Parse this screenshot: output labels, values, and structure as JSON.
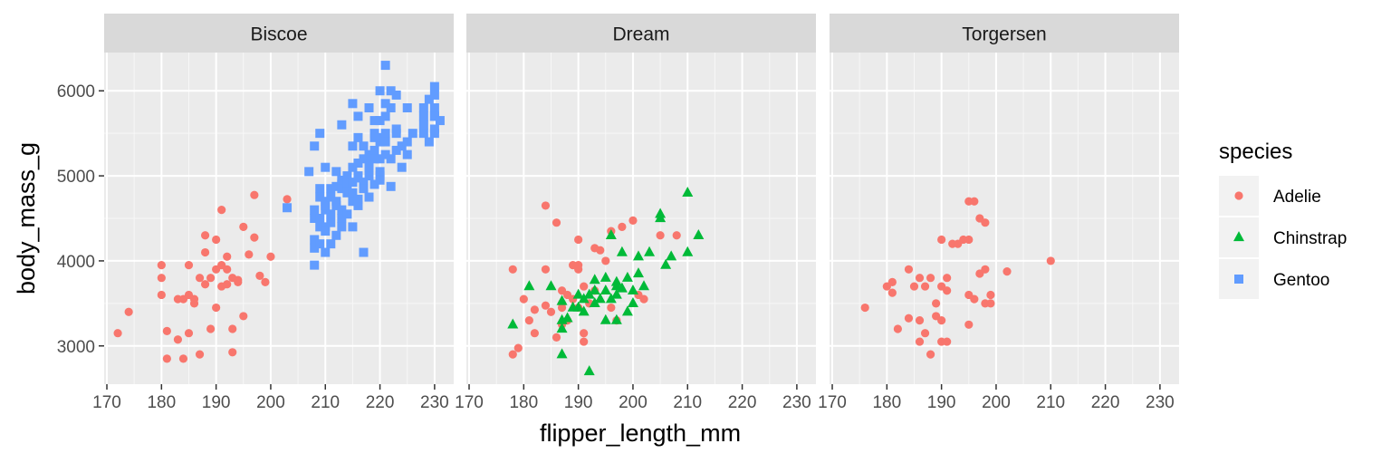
{
  "chart_data": {
    "type": "scatter",
    "facet_by": "island",
    "facets": [
      "Biscoe",
      "Dream",
      "Torgersen"
    ],
    "xlabel": "flipper_length_mm",
    "ylabel": "body_mass_g",
    "xlim": [
      169.5,
      233.5
    ],
    "ylim": [
      2550,
      6450
    ],
    "xticks": [
      170,
      180,
      190,
      200,
      210,
      220,
      230
    ],
    "yticks": [
      3000,
      4000,
      5000,
      6000
    ],
    "grid": true,
    "legend": {
      "title": "species",
      "position": "right"
    },
    "series": [
      {
        "name": "Adelie",
        "color": "#F8766D",
        "shape": "circle"
      },
      {
        "name": "Chinstrap",
        "color": "#00BA38",
        "shape": "triangle"
      },
      {
        "name": "Gentoo",
        "color": "#619CFF",
        "shape": "square"
      }
    ],
    "points": {
      "Biscoe": {
        "Adelie": [
          [
            172,
            3150
          ],
          [
            174,
            3400
          ],
          [
            180,
            3950
          ],
          [
            180,
            3800
          ],
          [
            180,
            3600
          ],
          [
            181,
            3175
          ],
          [
            181,
            2850
          ],
          [
            183,
            3075
          ],
          [
            183,
            3550
          ],
          [
            184,
            3550
          ],
          [
            184,
            2850
          ],
          [
            185,
            3950
          ],
          [
            185,
            3150
          ],
          [
            185,
            3600
          ],
          [
            186,
            3550
          ],
          [
            186,
            3500
          ],
          [
            187,
            3800
          ],
          [
            187,
            2900
          ],
          [
            188,
            3725
          ],
          [
            188,
            4100
          ],
          [
            188,
            4300
          ],
          [
            189,
            3800
          ],
          [
            189,
            3200
          ],
          [
            190,
            3450
          ],
          [
            190,
            3900
          ],
          [
            190,
            4250
          ],
          [
            191,
            3700
          ],
          [
            191,
            4600
          ],
          [
            191,
            3950
          ],
          [
            192,
            3725
          ],
          [
            192,
            4050
          ],
          [
            192,
            3900
          ],
          [
            193,
            3800
          ],
          [
            193,
            3200
          ],
          [
            193,
            2925
          ],
          [
            194,
            3750
          ],
          [
            194,
            3775
          ],
          [
            195,
            4400
          ],
          [
            195,
            3350
          ],
          [
            196,
            4075
          ],
          [
            197,
            4775
          ],
          [
            197,
            4275
          ],
          [
            198,
            3825
          ],
          [
            199,
            3750
          ],
          [
            200,
            4050
          ],
          [
            203,
            4725
          ]
        ],
        "Gentoo": [
          [
            203,
            4625
          ],
          [
            207,
            5050
          ],
          [
            208,
            5350
          ],
          [
            208,
            3950
          ],
          [
            208,
            4600
          ],
          [
            208,
            4500
          ],
          [
            208,
            4250
          ],
          [
            208,
            4150
          ],
          [
            209,
            4400
          ],
          [
            209,
            4200
          ],
          [
            209,
            4850
          ],
          [
            209,
            4500
          ],
          [
            209,
            4750
          ],
          [
            209,
            5500
          ],
          [
            210,
            4100
          ],
          [
            210,
            4700
          ],
          [
            210,
            4600
          ],
          [
            210,
            4400
          ],
          [
            210,
            5100
          ],
          [
            210,
            4350
          ],
          [
            210,
            4650
          ],
          [
            211,
            4200
          ],
          [
            211,
            4450
          ],
          [
            211,
            4850
          ],
          [
            211,
            4550
          ],
          [
            211,
            4750
          ],
          [
            212,
            4300
          ],
          [
            212,
            4650
          ],
          [
            212,
            4700
          ],
          [
            212,
            4875
          ],
          [
            212,
            5050
          ],
          [
            213,
            4500
          ],
          [
            213,
            4950
          ],
          [
            213,
            4600
          ],
          [
            213,
            4400
          ],
          [
            213,
            4900
          ],
          [
            213,
            4850
          ],
          [
            213,
            5600
          ],
          [
            214,
            4800
          ],
          [
            214,
            4550
          ],
          [
            214,
            4850
          ],
          [
            214,
            5000
          ],
          [
            214,
            4925
          ],
          [
            215,
            5850
          ],
          [
            215,
            4700
          ],
          [
            215,
            4400
          ],
          [
            215,
            4925
          ],
          [
            215,
            5350
          ],
          [
            215,
            5100
          ],
          [
            215,
            4800
          ],
          [
            216,
            4975
          ],
          [
            216,
            5000
          ],
          [
            216,
            4650
          ],
          [
            216,
            5150
          ],
          [
            216,
            5450
          ],
          [
            216,
            4725
          ],
          [
            216,
            5700
          ],
          [
            217,
            5200
          ],
          [
            217,
            4100
          ],
          [
            217,
            4925
          ],
          [
            217,
            5350
          ],
          [
            217,
            4850
          ],
          [
            218,
            5100
          ],
          [
            218,
            5200
          ],
          [
            218,
            5000
          ],
          [
            218,
            5250
          ],
          [
            218,
            4750
          ],
          [
            218,
            5800
          ],
          [
            219,
            5300
          ],
          [
            219,
            4900
          ],
          [
            219,
            5450
          ],
          [
            219,
            5200
          ],
          [
            219,
            5500
          ],
          [
            219,
            5650
          ],
          [
            220,
            5050
          ],
          [
            220,
            5400
          ],
          [
            220,
            6000
          ],
          [
            220,
            5650
          ],
          [
            220,
            5000
          ],
          [
            220,
            5200
          ],
          [
            220,
            5450
          ],
          [
            220,
            4950
          ],
          [
            221,
            5700
          ],
          [
            221,
            5500
          ],
          [
            221,
            6300
          ],
          [
            221,
            5850
          ],
          [
            221,
            5250
          ],
          [
            221,
            5400
          ],
          [
            222,
            5200
          ],
          [
            222,
            6000
          ],
          [
            222,
            4875
          ],
          [
            222,
            5800
          ],
          [
            223,
            5950
          ],
          [
            223,
            5550
          ],
          [
            223,
            5300
          ],
          [
            223,
            5500
          ],
          [
            224,
            5350
          ],
          [
            224,
            5100
          ],
          [
            225,
            5400
          ],
          [
            225,
            5250
          ],
          [
            225,
            5800
          ],
          [
            226,
            5500
          ],
          [
            228,
            5600
          ],
          [
            228,
            5700
          ],
          [
            228,
            5500
          ],
          [
            228,
            5800
          ],
          [
            229,
            5900
          ],
          [
            229,
            5400
          ],
          [
            230,
            5550
          ],
          [
            230,
            5800
          ],
          [
            230,
            6050
          ],
          [
            230,
            5700
          ],
          [
            230,
            5700
          ],
          [
            230,
            5950
          ],
          [
            230,
            5500
          ],
          [
            231,
            5650
          ]
        ]
      },
      "Dream": {
        "Adelie": [
          [
            178,
            3900
          ],
          [
            178,
            2900
          ],
          [
            179,
            2975
          ],
          [
            180,
            3550
          ],
          [
            181,
            3300
          ],
          [
            182,
            3150
          ],
          [
            182,
            3425
          ],
          [
            184,
            3900
          ],
          [
            184,
            4650
          ],
          [
            184,
            3475
          ],
          [
            185,
            3400
          ],
          [
            186,
            4450
          ],
          [
            186,
            3100
          ],
          [
            187,
            3250
          ],
          [
            187,
            3650
          ],
          [
            187,
            3500
          ],
          [
            187,
            3450
          ],
          [
            188,
            3300
          ],
          [
            188,
            3600
          ],
          [
            189,
            3950
          ],
          [
            189,
            3550
          ],
          [
            190,
            3950
          ],
          [
            190,
            3450
          ],
          [
            190,
            3900
          ],
          [
            190,
            4250
          ],
          [
            191,
            3150
          ],
          [
            191,
            3700
          ],
          [
            191,
            3050
          ],
          [
            192,
            3500
          ],
          [
            193,
            4150
          ],
          [
            193,
            3650
          ],
          [
            194,
            4125
          ],
          [
            195,
            4000
          ],
          [
            196,
            4350
          ],
          [
            196,
            3450
          ],
          [
            197,
            3300
          ],
          [
            198,
            4400
          ],
          [
            200,
            4475
          ],
          [
            201,
            3600
          ],
          [
            202,
            3550
          ],
          [
            205,
            4300
          ],
          [
            208,
            4300
          ]
        ],
        "Chinstrap": [
          [
            178,
            3250
          ],
          [
            181,
            3700
          ],
          [
            185,
            3700
          ],
          [
            187,
            3200
          ],
          [
            187,
            3300
          ],
          [
            187,
            2900
          ],
          [
            187,
            3525
          ],
          [
            188,
            3325
          ],
          [
            189,
            3450
          ],
          [
            190,
            3450
          ],
          [
            190,
            3600
          ],
          [
            191,
            3550
          ],
          [
            191,
            3400
          ],
          [
            192,
            2700
          ],
          [
            192,
            3600
          ],
          [
            193,
            3500
          ],
          [
            193,
            3775
          ],
          [
            193,
            3650
          ],
          [
            194,
            3550
          ],
          [
            195,
            3800
          ],
          [
            195,
            3300
          ],
          [
            195,
            3650
          ],
          [
            196,
            4300
          ],
          [
            196,
            3550
          ],
          [
            197,
            3750
          ],
          [
            197,
            3700
          ],
          [
            197,
            3300
          ],
          [
            197,
            3600
          ],
          [
            198,
            3675
          ],
          [
            198,
            4100
          ],
          [
            199,
            3400
          ],
          [
            199,
            3800
          ],
          [
            200,
            3500
          ],
          [
            200,
            3650
          ],
          [
            201,
            4050
          ],
          [
            201,
            3850
          ],
          [
            202,
            3700
          ],
          [
            203,
            4100
          ],
          [
            205,
            4550
          ],
          [
            205,
            4500
          ],
          [
            206,
            3950
          ],
          [
            207,
            4050
          ],
          [
            210,
            4800
          ],
          [
            210,
            4100
          ],
          [
            212,
            4300
          ]
        ]
      },
      "Torgersen": {
        "Adelie": [
          [
            176,
            3450
          ],
          [
            180,
            3700
          ],
          [
            181,
            3625
          ],
          [
            181,
            3750
          ],
          [
            182,
            3200
          ],
          [
            184,
            3900
          ],
          [
            184,
            3325
          ],
          [
            185,
            3700
          ],
          [
            186,
            3800
          ],
          [
            186,
            3050
          ],
          [
            186,
            3300
          ],
          [
            187,
            3700
          ],
          [
            187,
            3150
          ],
          [
            188,
            2900
          ],
          [
            188,
            3800
          ],
          [
            189,
            3350
          ],
          [
            189,
            3500
          ],
          [
            190,
            3300
          ],
          [
            190,
            3050
          ],
          [
            190,
            4250
          ],
          [
            190,
            3700
          ],
          [
            191,
            3800
          ],
          [
            191,
            3650
          ],
          [
            191,
            3050
          ],
          [
            192,
            4200
          ],
          [
            193,
            4200
          ],
          [
            194,
            4250
          ],
          [
            195,
            4700
          ],
          [
            195,
            4250
          ],
          [
            195,
            3250
          ],
          [
            195,
            3600
          ],
          [
            196,
            3550
          ],
          [
            196,
            4700
          ],
          [
            197,
            4500
          ],
          [
            197,
            3850
          ],
          [
            198,
            4450
          ],
          [
            198,
            3900
          ],
          [
            198,
            3500
          ],
          [
            199,
            3500
          ],
          [
            199,
            3600
          ],
          [
            202,
            3875
          ],
          [
            210,
            4000
          ]
        ]
      }
    }
  }
}
